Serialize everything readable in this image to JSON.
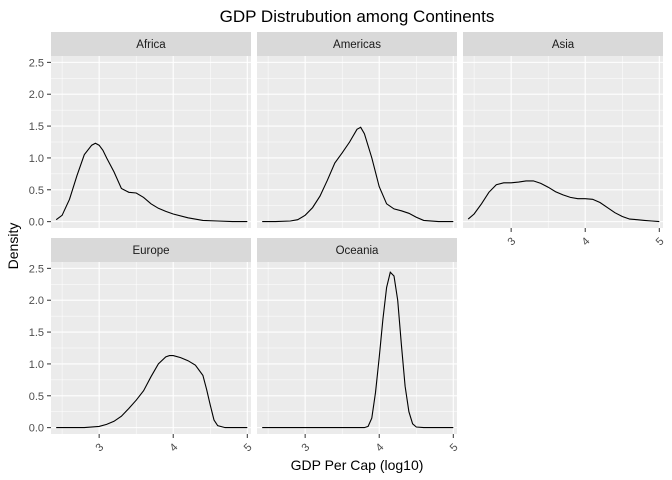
{
  "chart_data": {
    "type": "line",
    "title": "GDP Distrubution among Continents",
    "xlabel": "GDP Per Cap (log10)",
    "ylabel": "Density",
    "xlim": [
      2.35,
      5.05
    ],
    "ylim": [
      -0.1,
      2.6
    ],
    "xticks": [
      3,
      4,
      5
    ],
    "xtick_labels": [
      "3",
      "4",
      "5"
    ],
    "yticks": [
      0,
      0.5,
      1,
      1.5,
      2,
      2.5
    ],
    "ytick_labels": [
      "0.0",
      "0.5",
      "1.0",
      "1.5",
      "2.0",
      "2.5"
    ],
    "grid": true,
    "facets": [
      {
        "label": "Africa",
        "x": [
          2.42,
          2.5,
          2.6,
          2.7,
          2.8,
          2.9,
          2.95,
          3.0,
          3.05,
          3.1,
          3.2,
          3.3,
          3.4,
          3.5,
          3.6,
          3.7,
          3.8,
          3.9,
          4.0,
          4.2,
          4.4,
          4.6,
          4.8,
          5.0
        ],
        "y": [
          0.03,
          0.1,
          0.35,
          0.72,
          1.05,
          1.2,
          1.23,
          1.2,
          1.12,
          1.0,
          0.78,
          0.52,
          0.46,
          0.45,
          0.38,
          0.28,
          0.21,
          0.16,
          0.12,
          0.06,
          0.02,
          0.01,
          0.0,
          0.0
        ]
      },
      {
        "label": "Americas",
        "x": [
          2.42,
          2.6,
          2.8,
          2.9,
          3.0,
          3.1,
          3.2,
          3.3,
          3.4,
          3.5,
          3.6,
          3.7,
          3.75,
          3.8,
          3.9,
          4.0,
          4.1,
          4.2,
          4.3,
          4.4,
          4.5,
          4.6,
          4.8,
          5.0
        ],
        "y": [
          0.0,
          0.0,
          0.01,
          0.03,
          0.1,
          0.22,
          0.4,
          0.65,
          0.92,
          1.08,
          1.25,
          1.45,
          1.48,
          1.38,
          1.0,
          0.55,
          0.28,
          0.2,
          0.17,
          0.13,
          0.07,
          0.02,
          0.0,
          0.0
        ]
      },
      {
        "label": "Asia",
        "x": [
          2.42,
          2.5,
          2.6,
          2.7,
          2.8,
          2.9,
          3.0,
          3.1,
          3.2,
          3.3,
          3.4,
          3.5,
          3.6,
          3.7,
          3.8,
          3.9,
          4.0,
          4.1,
          4.2,
          4.3,
          4.4,
          4.5,
          4.6,
          4.7,
          4.8,
          4.9,
          5.0
        ],
        "y": [
          0.04,
          0.12,
          0.28,
          0.46,
          0.58,
          0.61,
          0.61,
          0.62,
          0.64,
          0.64,
          0.6,
          0.54,
          0.47,
          0.42,
          0.38,
          0.36,
          0.36,
          0.35,
          0.3,
          0.22,
          0.14,
          0.08,
          0.04,
          0.03,
          0.02,
          0.01,
          0.0
        ]
      },
      {
        "label": "Europe",
        "x": [
          2.42,
          2.8,
          3.0,
          3.1,
          3.2,
          3.3,
          3.4,
          3.5,
          3.6,
          3.7,
          3.8,
          3.9,
          3.95,
          4.0,
          4.1,
          4.2,
          4.3,
          4.4,
          4.45,
          4.5,
          4.55,
          4.6,
          4.7,
          4.8,
          5.0
        ],
        "y": [
          0.0,
          0.0,
          0.02,
          0.05,
          0.1,
          0.18,
          0.3,
          0.43,
          0.58,
          0.8,
          1.0,
          1.11,
          1.13,
          1.13,
          1.1,
          1.05,
          0.98,
          0.82,
          0.6,
          0.35,
          0.12,
          0.03,
          0.0,
          0.0,
          0.0
        ]
      },
      {
        "label": "Oceania",
        "x": [
          2.42,
          3.5,
          3.8,
          3.85,
          3.9,
          3.95,
          4.0,
          4.05,
          4.1,
          4.15,
          4.2,
          4.25,
          4.3,
          4.35,
          4.4,
          4.45,
          4.5,
          4.6,
          4.8,
          5.0
        ],
        "y": [
          0.0,
          0.0,
          0.0,
          0.02,
          0.15,
          0.55,
          1.1,
          1.7,
          2.2,
          2.44,
          2.38,
          2.0,
          1.3,
          0.65,
          0.25,
          0.06,
          0.01,
          0.0,
          0.0,
          0.0
        ]
      }
    ]
  }
}
